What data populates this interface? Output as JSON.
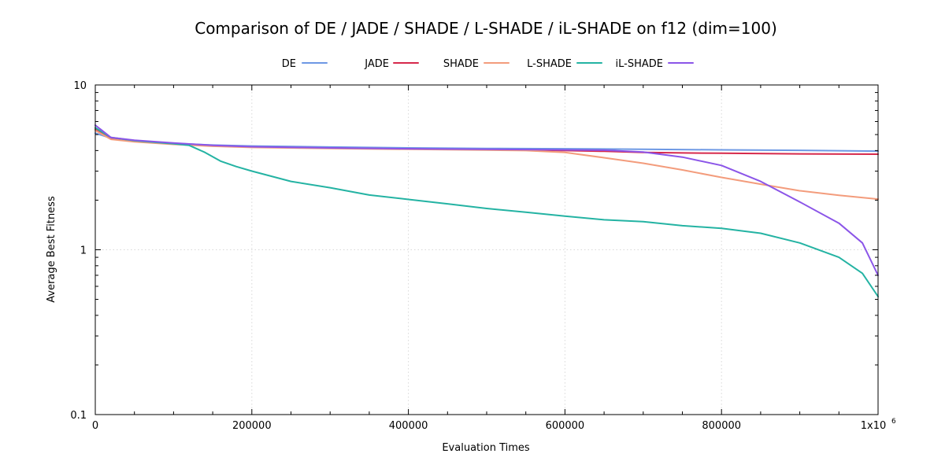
{
  "chart_data": {
    "type": "line",
    "title": "Comparison of DE / JADE / SHADE / L-SHADE / iL-SHADE on f12 (dim=100)",
    "xlabel": "Evaluation Times",
    "ylabel": "Average Best Fitness",
    "xlim": [
      0,
      1000000
    ],
    "ylim": [
      0.1,
      10
    ],
    "y_scale": "log",
    "grid": true,
    "legend_position": "top-center",
    "x_ticks": [
      {
        "value": 0,
        "label": "0"
      },
      {
        "value": 200000,
        "label": "200000"
      },
      {
        "value": 400000,
        "label": "400000"
      },
      {
        "value": 600000,
        "label": "600000"
      },
      {
        "value": 800000,
        "label": "800000"
      }
    ],
    "x_end_tick": {
      "value": 1000000,
      "base": "1x10",
      "exponent": "6"
    },
    "y_ticks": [
      {
        "value": 0.1,
        "label": "0.1"
      },
      {
        "value": 1,
        "label": "1"
      },
      {
        "value": 10,
        "label": "10"
      }
    ],
    "series": [
      {
        "name": "DE",
        "color": "#6d98e4",
        "points": [
          [
            0,
            5.1
          ],
          [
            20000,
            4.75
          ],
          [
            50000,
            4.58
          ],
          [
            100000,
            4.42
          ],
          [
            150000,
            4.32
          ],
          [
            200000,
            4.26
          ],
          [
            300000,
            4.2
          ],
          [
            400000,
            4.15
          ],
          [
            500000,
            4.12
          ],
          [
            600000,
            4.1
          ],
          [
            700000,
            4.07
          ],
          [
            800000,
            4.04
          ],
          [
            900000,
            4.01
          ],
          [
            1000000,
            3.97
          ]
        ]
      },
      {
        "name": "JADE",
        "color": "#d6294b",
        "points": [
          [
            0,
            5.4
          ],
          [
            20000,
            4.7
          ],
          [
            50000,
            4.55
          ],
          [
            100000,
            4.38
          ],
          [
            150000,
            4.27
          ],
          [
            200000,
            4.2
          ],
          [
            300000,
            4.14
          ],
          [
            400000,
            4.09
          ],
          [
            500000,
            4.05
          ],
          [
            600000,
            4.0
          ],
          [
            650000,
            3.96
          ],
          [
            700000,
            3.9
          ],
          [
            750000,
            3.87
          ],
          [
            800000,
            3.85
          ],
          [
            900000,
            3.82
          ],
          [
            1000000,
            3.8
          ]
        ]
      },
      {
        "name": "SHADE",
        "color": "#f39c7c",
        "points": [
          [
            0,
            5.3
          ],
          [
            20000,
            4.68
          ],
          [
            50000,
            4.52
          ],
          [
            100000,
            4.36
          ],
          [
            150000,
            4.25
          ],
          [
            200000,
            4.18
          ],
          [
            300000,
            4.12
          ],
          [
            400000,
            4.07
          ],
          [
            500000,
            4.03
          ],
          [
            550000,
            4.0
          ],
          [
            600000,
            3.9
          ],
          [
            650000,
            3.62
          ],
          [
            700000,
            3.35
          ],
          [
            750000,
            3.05
          ],
          [
            800000,
            2.75
          ],
          [
            850000,
            2.5
          ],
          [
            900000,
            2.28
          ],
          [
            950000,
            2.14
          ],
          [
            1000000,
            2.03
          ]
        ]
      },
      {
        "name": "L-SHADE",
        "color": "#24b3a3",
        "points": [
          [
            0,
            5.5
          ],
          [
            20000,
            4.8
          ],
          [
            50000,
            4.6
          ],
          [
            100000,
            4.4
          ],
          [
            120000,
            4.3
          ],
          [
            140000,
            3.9
          ],
          [
            160000,
            3.45
          ],
          [
            180000,
            3.2
          ],
          [
            200000,
            3.0
          ],
          [
            250000,
            2.6
          ],
          [
            300000,
            2.38
          ],
          [
            350000,
            2.15
          ],
          [
            400000,
            2.02
          ],
          [
            450000,
            1.9
          ],
          [
            500000,
            1.78
          ],
          [
            550000,
            1.69
          ],
          [
            600000,
            1.6
          ],
          [
            650000,
            1.52
          ],
          [
            700000,
            1.48
          ],
          [
            750000,
            1.4
          ],
          [
            800000,
            1.35
          ],
          [
            850000,
            1.26
          ],
          [
            900000,
            1.1
          ],
          [
            950000,
            0.9
          ],
          [
            980000,
            0.72
          ],
          [
            1000000,
            0.52
          ]
        ]
      },
      {
        "name": "iL-SHADE",
        "color": "#8b55e8",
        "points": [
          [
            0,
            5.7
          ],
          [
            20000,
            4.8
          ],
          [
            50000,
            4.62
          ],
          [
            100000,
            4.45
          ],
          [
            150000,
            4.3
          ],
          [
            200000,
            4.22
          ],
          [
            300000,
            4.15
          ],
          [
            400000,
            4.1
          ],
          [
            500000,
            4.07
          ],
          [
            600000,
            4.04
          ],
          [
            650000,
            4.02
          ],
          [
            700000,
            3.92
          ],
          [
            750000,
            3.65
          ],
          [
            800000,
            3.25
          ],
          [
            850000,
            2.6
          ],
          [
            900000,
            1.95
          ],
          [
            950000,
            1.45
          ],
          [
            980000,
            1.1
          ],
          [
            1000000,
            0.7
          ]
        ]
      }
    ]
  }
}
